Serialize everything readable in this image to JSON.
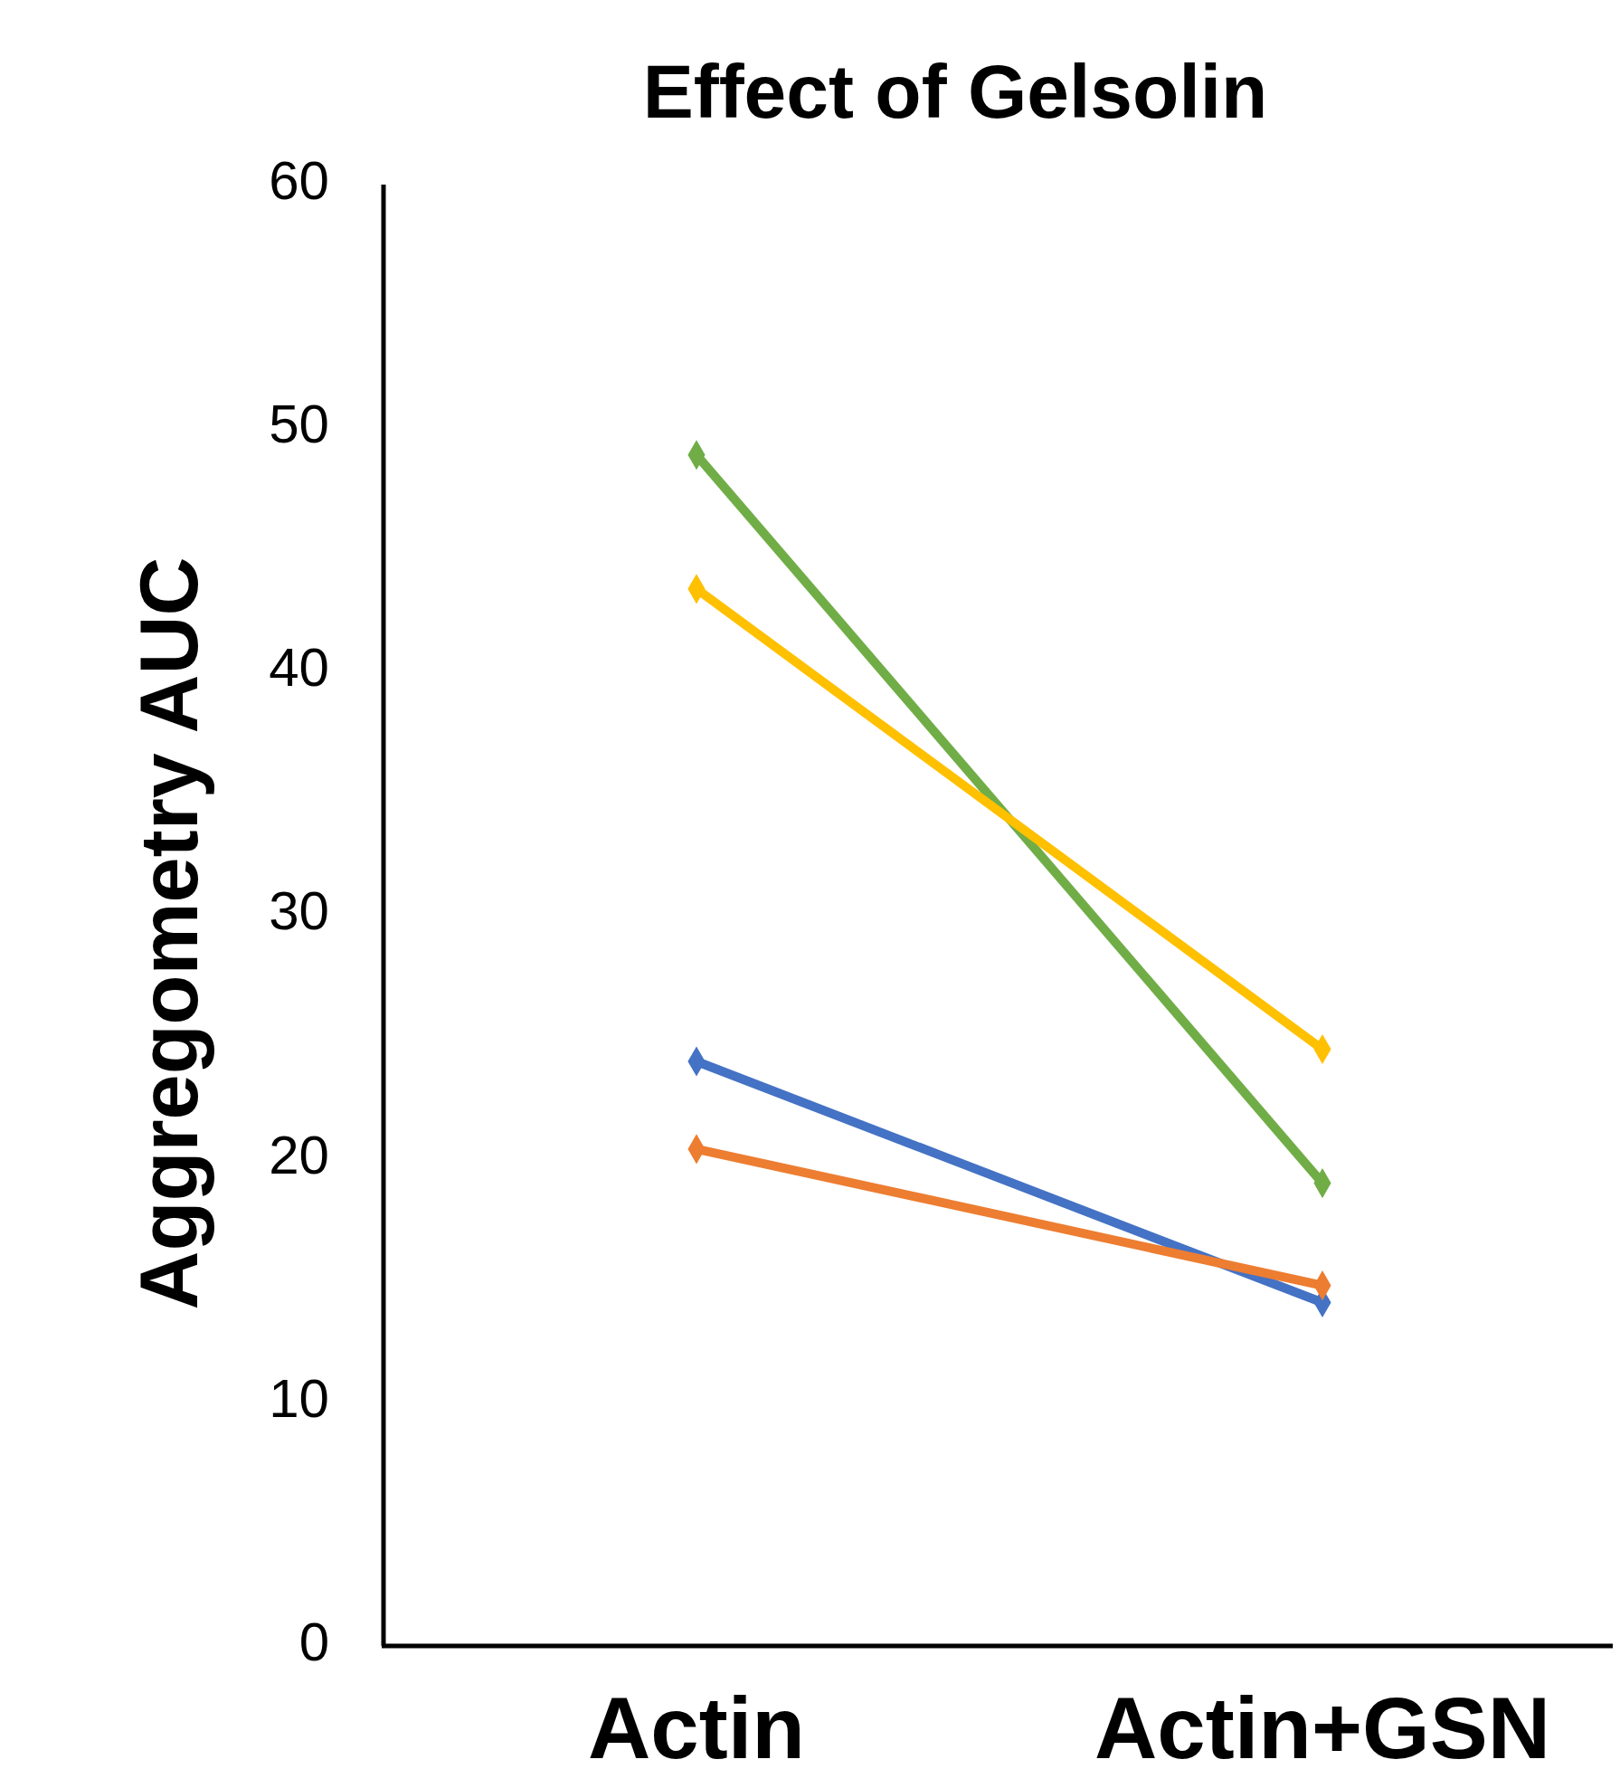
{
  "chart_data": {
    "type": "line",
    "title": "Effect of Gelsolin",
    "ylabel": "Aggregometry AUC",
    "categories": [
      "Actin",
      "Actin+GSN"
    ],
    "series": [
      {
        "color": "#70ad47",
        "values": [
          48.9,
          19.0
        ]
      },
      {
        "color": "#ffc000",
        "values": [
          43.4,
          24.5
        ]
      },
      {
        "color": "#4472c4",
        "values": [
          24.0,
          14.1
        ]
      },
      {
        "color": "#ed7d31",
        "values": [
          20.4,
          14.8
        ]
      }
    ],
    "ylim": [
      0,
      60
    ],
    "yticks": [
      0,
      10,
      20,
      30,
      40,
      50,
      60
    ],
    "marker": "diamond",
    "line_style": "solid",
    "grid": false
  }
}
